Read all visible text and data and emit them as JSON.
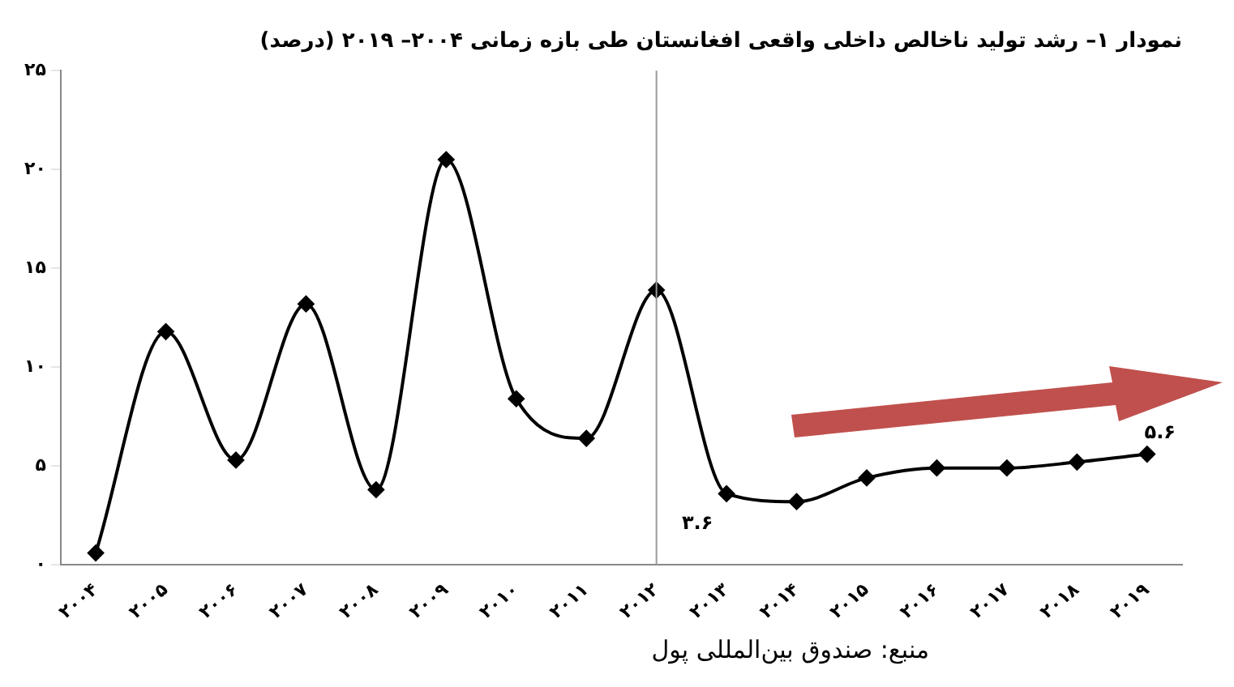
{
  "chart_data": {
    "type": "line",
    "title": "نمودار ۱– رشد تولید ناخالص داخلی واقعی افغانستان طی بازه زمانی ۲۰۰۴– ۲۰۱۹ (درصد)",
    "categories": [
      "۲۰۰۴",
      "۲۰۰۵",
      "۲۰۰۶",
      "۲۰۰۷",
      "۲۰۰۸",
      "۲۰۰۹",
      "۲۰۱۰",
      "۲۰۱۱",
      "۲۰۱۲",
      "۲۰۱۳",
      "۲۰۱۴",
      "۲۰۱۵",
      "۲۰۱۶",
      "۲۰۱۷",
      "۲۰۱۸",
      "۲۰۱۹"
    ],
    "series": [
      {
        "color": "#000000",
        "values": [
          0.6,
          11.8,
          5.3,
          13.2,
          3.8,
          20.5,
          8.4,
          6.4,
          13.9,
          3.6,
          3.2,
          4.4,
          4.9,
          4.9,
          5.2,
          5.6
        ]
      }
    ],
    "ylim": [
      0,
      25
    ],
    "yticks": [
      {
        "value": 0,
        "label": "۰"
      },
      {
        "value": 5,
        "label": "۵"
      },
      {
        "value": 10,
        "label": "۱۰"
      },
      {
        "value": 15,
        "label": "۱۵"
      },
      {
        "value": 20,
        "label": "۲۰"
      },
      {
        "value": 25,
        "label": "۲۵"
      }
    ],
    "ref_lines": [
      {
        "axis": "x",
        "value": "۲۰۱۲",
        "color": "#999999"
      }
    ],
    "annotations": [
      {
        "text": "۳.۶",
        "x": "۲۰۱۳",
        "y": 3.6
      },
      {
        "text": "۵.۶",
        "x": "۲۰۱۹",
        "y": 5.6
      },
      "منبع: صندوق بین‌المللی پول"
    ],
    "marker": "diamond",
    "line_style": "solid",
    "grid": false,
    "legend": false
  }
}
